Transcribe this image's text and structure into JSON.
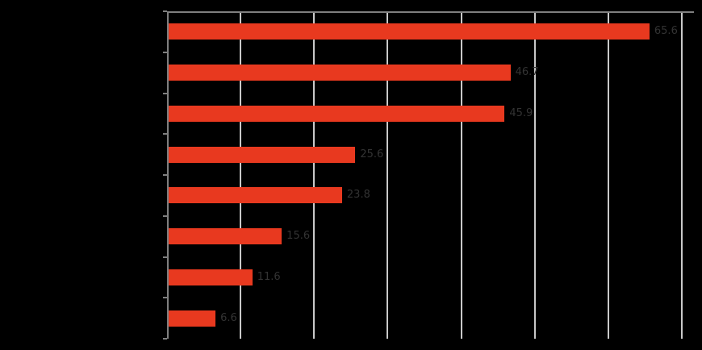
{
  "chart": {
    "background_color": "#000000",
    "bar_color": "#e8391f",
    "gridline_color": "#c9c9c9",
    "spine_color": "#7f7f7f",
    "tick_color": "#7f7f7f",
    "value_label_color": "#333333",
    "text_visibility_note": "title, axis and category text is rendered black-on-black in the source image and is not legible; only faint value-label traces are visible at bar ends"
  },
  "chart_data": {
    "type": "bar",
    "orientation": "horizontal",
    "title": "",
    "xlabel": "",
    "ylabel": "",
    "categories": [
      "",
      "",
      "",
      "",
      "",
      "",
      "",
      ""
    ],
    "values": [
      65.6,
      46.7,
      45.9,
      25.6,
      23.8,
      15.6,
      11.6,
      6.6
    ],
    "value_labels": [
      "65.6",
      "46.7",
      "45.9",
      "25.6",
      "23.8",
      "15.6",
      "11.6",
      "6.6"
    ],
    "xlim": [
      0,
      71.6
    ],
    "xticks": [
      0,
      10,
      20,
      30,
      40,
      50,
      60,
      70
    ],
    "grid": true,
    "grid_axis": "x",
    "legend": false
  }
}
